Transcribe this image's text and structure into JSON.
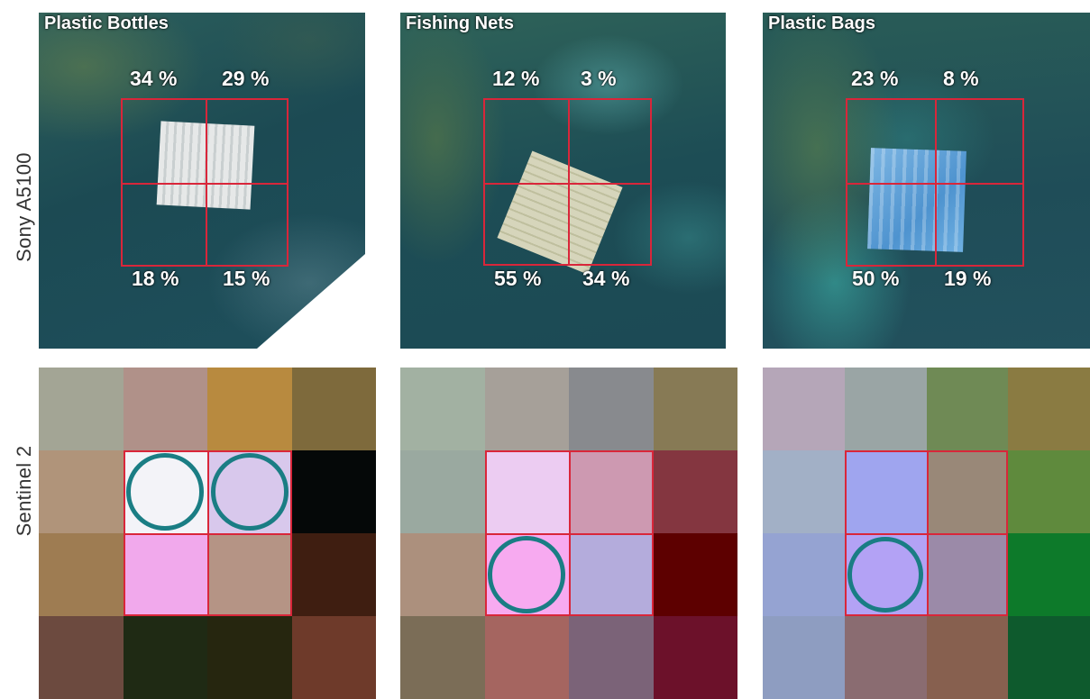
{
  "row_labels": [
    "Sony A5100",
    "Sentinel 2"
  ],
  "panels": [
    {
      "title": "Plastic Bottles",
      "percentages": {
        "top_left": "34 %",
        "top_right": "29 %",
        "bottom_left": "18 %",
        "bottom_right": "15 %"
      },
      "sheet_color": "#d9dcdc",
      "pixels": [
        "#a3a595",
        "#b09189",
        "#b88a3f",
        "#7e6a3c",
        "#b0947a",
        "#f3f3f8",
        "#d8c8ec",
        "#050808",
        "#9e7c52",
        "#f1a9ec",
        "#b59485",
        "#3f1e11",
        "#6c4a3f",
        "#1f2a14",
        "#26260f",
        "#6e3a2a"
      ],
      "circled_cells": [
        5,
        6
      ]
    },
    {
      "title": "Fishing Nets",
      "percentages": {
        "top_left": "12 %",
        "top_right": "3 %",
        "bottom_left": "55 %",
        "bottom_right": "34 %"
      },
      "sheet_color": "#cfcfb4",
      "pixels": [
        "#a2b1a2",
        "#a6a099",
        "#888a8e",
        "#877a55",
        "#9aa9a0",
        "#ecccf2",
        "#cd99b1",
        "#843640",
        "#ac907d",
        "#f7aaf0",
        "#b4acdc",
        "#5d0000",
        "#7b6d57",
        "#a56560",
        "#7b6378",
        "#6c112a"
      ],
      "circled_cells": [
        9
      ]
    },
    {
      "title": "Plastic Bags",
      "percentages": {
        "top_left": "23 %",
        "top_right": "8 %",
        "bottom_left": "50 %",
        "bottom_right": "19 %"
      },
      "sheet_color": "#5e9fd0",
      "pixels": [
        "#b5a6b8",
        "#9aa5a5",
        "#6f8a55",
        "#8a7b42",
        "#a2b0c6",
        "#9fa5ef",
        "#998878",
        "#5f8a3d",
        "#95a3d2",
        "#b3a2f5",
        "#9b8aa8",
        "#0d7a2a",
        "#8e9dc1",
        "#8a6c71",
        "#87604f",
        "#0e5a2d"
      ],
      "circled_cells": [
        9
      ]
    }
  ]
}
